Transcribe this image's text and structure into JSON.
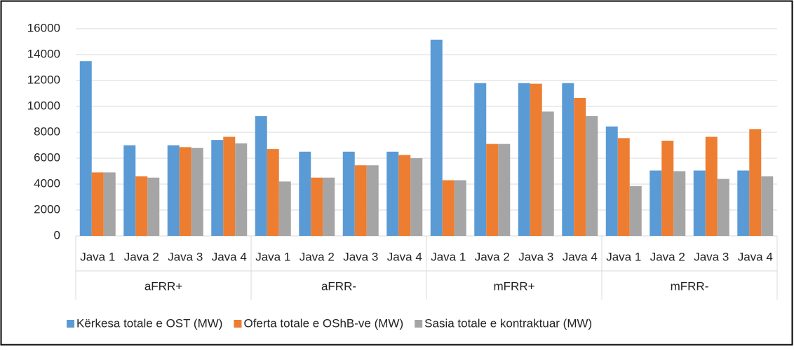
{
  "chart_data": {
    "type": "bar",
    "categories": [
      "Java 1",
      "Java 2",
      "Java 3",
      "Java 4",
      "Java 1",
      "Java 2",
      "Java 3",
      "Java 4",
      "Java 1",
      "Java 2",
      "Java 3",
      "Java 4",
      "Java 1",
      "Java 2",
      "Java 3",
      "Java 4"
    ],
    "groups": [
      "aFRR+",
      "aFRR-",
      "mFRR+",
      "mFRR-"
    ],
    "series": [
      {
        "name": "Kërkesa totale e OST (MW)",
        "color": "#5b9bd5",
        "values": [
          13500,
          7000,
          7000,
          7400,
          9250,
          6500,
          6500,
          6500,
          15150,
          11800,
          11800,
          11800,
          8450,
          5050,
          5050,
          5050
        ]
      },
      {
        "name": "Oferta totale e OShB-ve (MW)",
        "color": "#ed7d31",
        "values": [
          4900,
          4600,
          6850,
          7650,
          6700,
          4500,
          5450,
          6250,
          4300,
          7100,
          11750,
          10650,
          7550,
          7350,
          7650,
          8250
        ]
      },
      {
        "name": "Sasia totale e kontraktuar (MW)",
        "color": "#a5a5a5",
        "values": [
          4900,
          4500,
          6800,
          7150,
          4200,
          4500,
          5450,
          6000,
          4300,
          7100,
          9600,
          9250,
          3850,
          5000,
          4400,
          4600
        ]
      }
    ],
    "ylim": [
      0,
      16000
    ],
    "yticks": [
      0,
      2000,
      4000,
      6000,
      8000,
      10000,
      12000,
      14000,
      16000
    ],
    "grid": true,
    "legend": "bottom"
  }
}
